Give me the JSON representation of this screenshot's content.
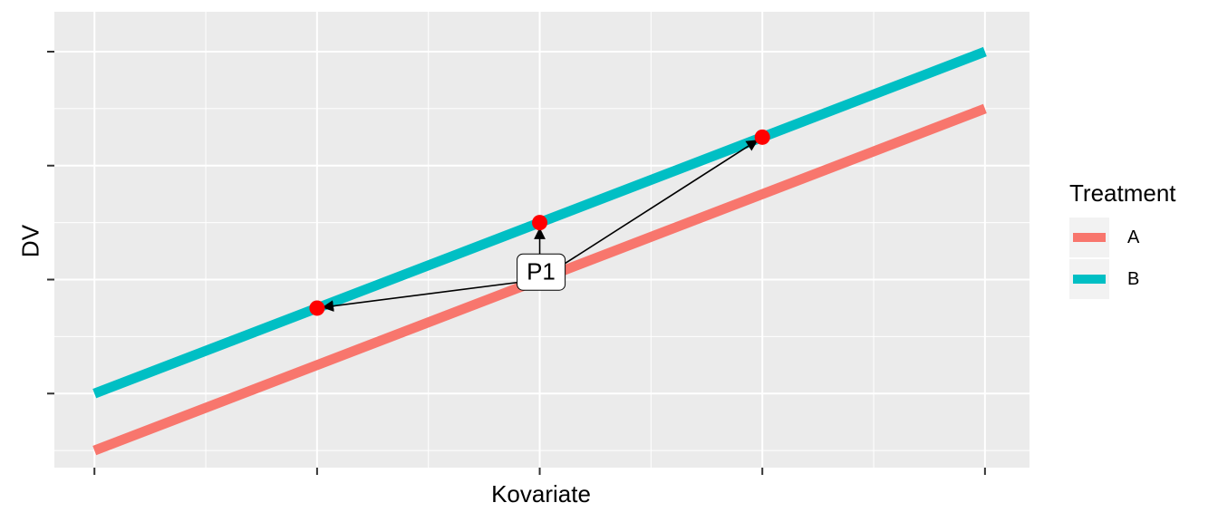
{
  "chart_data": {
    "type": "line",
    "xlabel": "Kovariate",
    "ylabel": "DV",
    "x_ticks": [
      0,
      1,
      2,
      3,
      4
    ],
    "y_ticks": [
      1,
      3,
      5,
      7
    ],
    "xlim": [
      -0.18,
      4.2
    ],
    "ylim": [
      -0.3,
      7.7
    ],
    "grid": true,
    "show_tick_labels": false,
    "series": [
      {
        "name": "A",
        "color": "#F8766D",
        "x": [
          0,
          4
        ],
        "y": [
          0,
          6
        ]
      },
      {
        "name": "B",
        "color": "#00BFC4",
        "x": [
          0,
          4
        ],
        "y": [
          1,
          7
        ]
      }
    ],
    "points": [
      {
        "x": 1,
        "y": 2.5,
        "color": "#FF0000"
      },
      {
        "x": 2,
        "y": 4.0,
        "color": "#FF0000"
      },
      {
        "x": 3,
        "y": 5.5,
        "color": "#FF0000"
      }
    ],
    "annotation": {
      "label": "P1",
      "x": 2,
      "y": 3.0
    },
    "legend": {
      "title": "Treatment",
      "position": "right",
      "entries": [
        "A",
        "B"
      ]
    }
  }
}
